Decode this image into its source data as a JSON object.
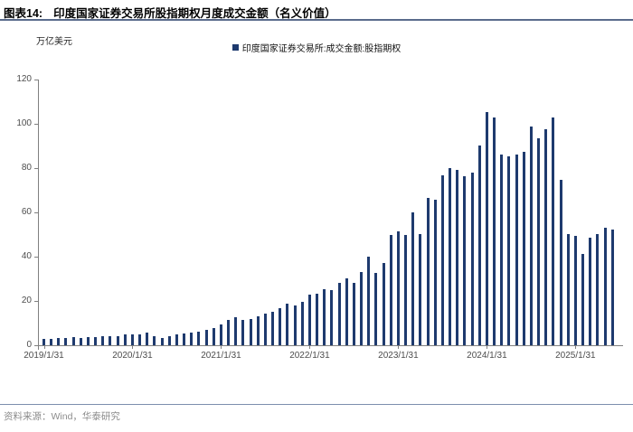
{
  "header": {
    "figure_label": "图表14:",
    "title": "印度国家证券交易所股指期权月度成交金额（名义价值）"
  },
  "footer": {
    "source": "资料来源：Wind，华泰研究"
  },
  "colors": {
    "bar": "#1e3a6e",
    "title_rule": "#5a6b8c",
    "footer_rule": "#7d8fae",
    "axis": "#808080",
    "tick_label": "#4d4d4d"
  },
  "chart_data": {
    "type": "bar",
    "legend": "印度国家证券交易所:成交金额:股指期权",
    "unit_label": "万亿美元",
    "ylabel": "万亿美元",
    "ylim": [
      0,
      120
    ],
    "y_ticks": [
      0,
      20,
      40,
      60,
      80,
      100,
      120
    ],
    "grid": false,
    "legend_position": "top-center",
    "x_tick_labels": [
      "2019/1/31",
      "2020/1/31",
      "2021/1/31",
      "2022/1/31",
      "2023/1/31",
      "2024/1/31",
      "2025/1/31"
    ],
    "x_tick_month_indices": [
      0,
      12,
      24,
      36,
      48,
      60,
      72
    ],
    "categories": [
      "2019/1",
      "2019/2",
      "2019/3",
      "2019/4",
      "2019/5",
      "2019/6",
      "2019/7",
      "2019/8",
      "2019/9",
      "2019/10",
      "2019/11",
      "2019/12",
      "2020/1",
      "2020/2",
      "2020/3",
      "2020/4",
      "2020/5",
      "2020/6",
      "2020/7",
      "2020/8",
      "2020/9",
      "2020/10",
      "2020/11",
      "2020/12",
      "2021/1",
      "2021/2",
      "2021/3",
      "2021/4",
      "2021/5",
      "2021/6",
      "2021/7",
      "2021/8",
      "2021/9",
      "2021/10",
      "2021/11",
      "2021/12",
      "2022/1",
      "2022/2",
      "2022/3",
      "2022/4",
      "2022/5",
      "2022/6",
      "2022/7",
      "2022/8",
      "2022/9",
      "2022/10",
      "2022/11",
      "2022/12",
      "2023/1",
      "2023/2",
      "2023/3",
      "2023/4",
      "2023/5",
      "2023/6",
      "2023/7",
      "2023/8",
      "2023/9",
      "2023/10",
      "2023/11",
      "2023/12",
      "2024/1",
      "2024/2",
      "2024/3",
      "2024/4",
      "2024/5",
      "2024/6",
      "2024/7",
      "2024/8",
      "2024/9",
      "2024/10",
      "2024/11",
      "2024/12",
      "2025/1",
      "2025/2",
      "2025/3",
      "2025/4",
      "2025/5",
      "2025/6"
    ],
    "values": [
      3.0,
      2.9,
      3.2,
      3.3,
      3.6,
      3.4,
      3.7,
      3.8,
      3.9,
      4.1,
      4.0,
      4.8,
      4.8,
      5.0,
      5.9,
      4.0,
      3.4,
      4.1,
      4.9,
      5.2,
      5.9,
      6.3,
      7.0,
      7.7,
      9.5,
      11.3,
      12.5,
      11.5,
      11.8,
      13.0,
      14.2,
      15.0,
      16.8,
      18.6,
      18.0,
      19.5,
      22.8,
      23.4,
      25.5,
      25.0,
      28.0,
      30.3,
      28.2,
      33.0,
      40.1,
      32.7,
      37.2,
      49.8,
      51.5,
      50.0,
      60.0,
      50.2,
      66.7,
      65.8,
      76.7,
      80.1,
      79.3,
      76.3,
      78.0,
      90.2,
      105.5,
      102.7,
      86.1,
      85.4,
      86.3,
      87.4,
      98.8,
      93.5,
      97.7,
      103.0,
      74.5,
      50.2,
      49.5,
      41.3,
      48.7,
      50.1,
      53.2,
      52.3
    ]
  }
}
